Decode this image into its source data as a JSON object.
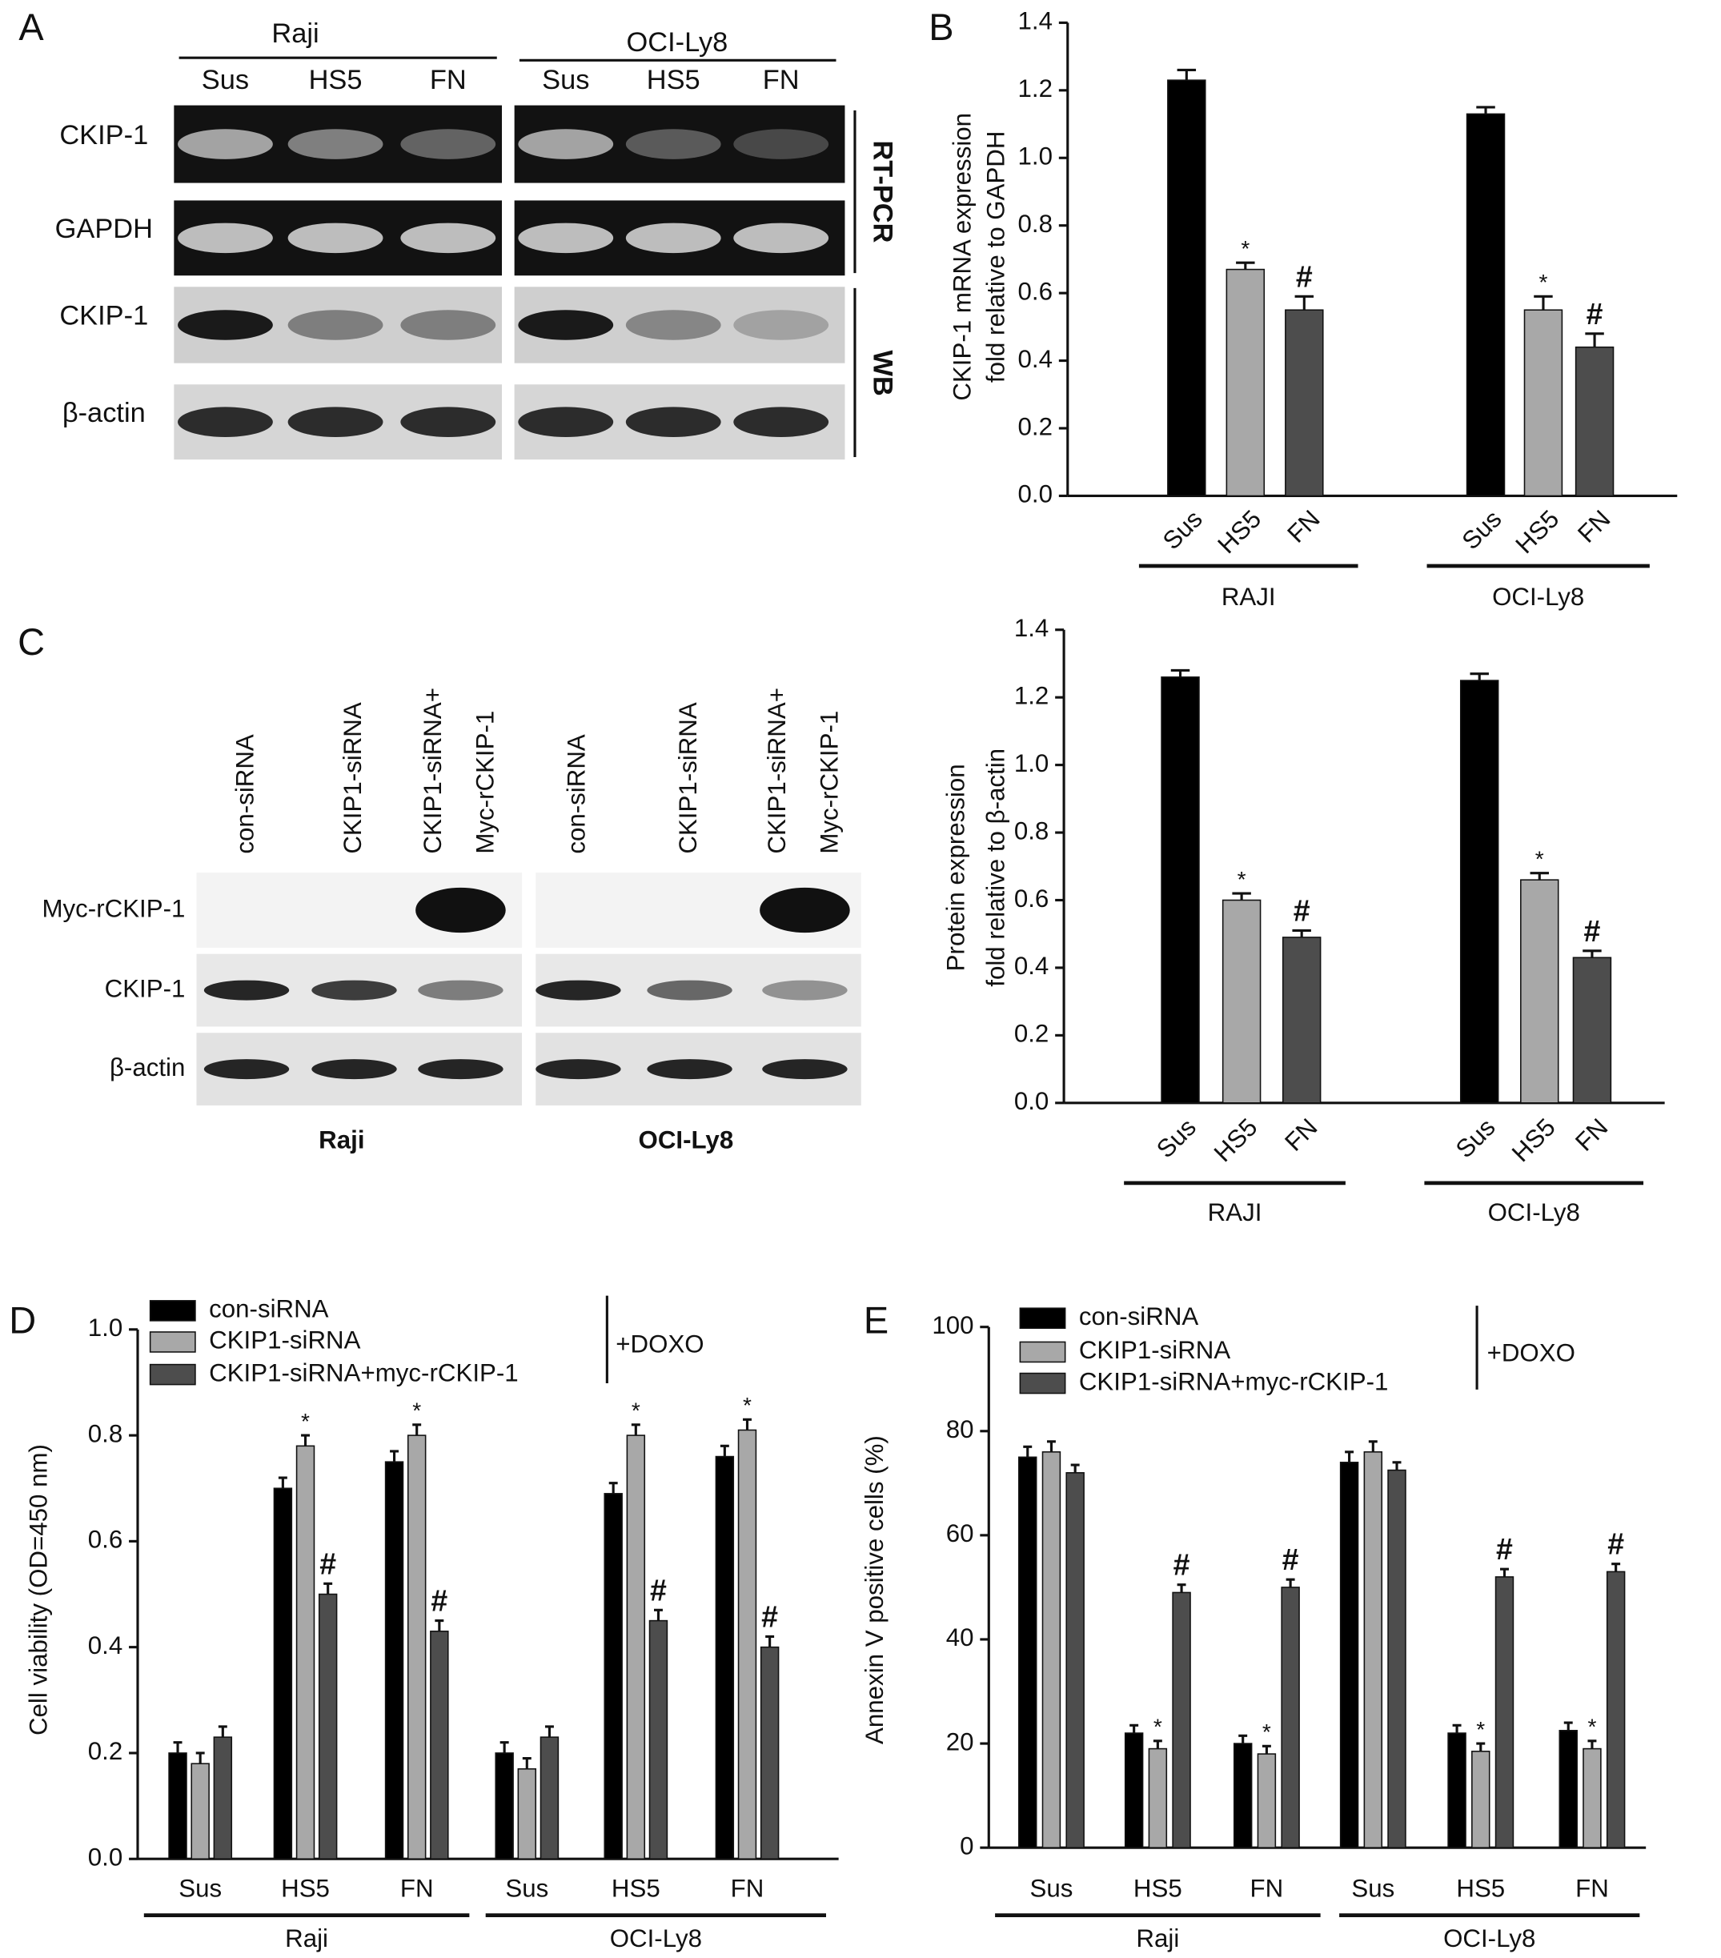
{
  "blots": [
    {
      "panel": "A",
      "cell_lines": [
        "Raji",
        "OCI-Ly8"
      ],
      "lanes": [
        "Sus",
        "HS5",
        "FN",
        "Sus",
        "HS5",
        "FN"
      ],
      "rows": [
        "CKIP-1",
        "GAPDH",
        "CKIP-1",
        "β-actin"
      ],
      "methods": [
        "RT-PCR",
        "WB"
      ]
    },
    {
      "panel": "C",
      "cell_lines": [
        "Raji",
        "OCI-Ly8"
      ],
      "lanes": [
        [
          "con-siRNA"
        ],
        [
          "CKIP1-siRNA"
        ],
        [
          "CKIP1-siRNA+",
          "Myc-rCKIP-1"
        ],
        [
          "con-siRNA"
        ],
        [
          "CKIP1-siRNA"
        ],
        [
          "CKIP1-siRNA+",
          "Myc-rCKIP-1"
        ]
      ],
      "rows": [
        "Myc-rCKIP-1",
        "CKIP-1",
        "β-actin"
      ]
    }
  ],
  "chart_data": [
    {
      "type": "bar",
      "panel": "B",
      "ylabel": [
        "CKIP-1 mRNA expression",
        "fold relative to GAPDH"
      ],
      "groups": [
        {
          "label": "RAJI",
          "categories": [
            "Sus",
            "HS5",
            "FN"
          ]
        },
        {
          "label": "OCI-Ly8",
          "categories": [
            "Sus",
            "HS5",
            "FN"
          ]
        }
      ],
      "ylim": [
        0,
        1.4
      ],
      "yticks": [
        {
          "value": 0,
          "label": "0.0"
        },
        0.2,
        0.4,
        0.6,
        0.8,
        {
          "value": 1,
          "label": "1.0"
        },
        1.2,
        1.4
      ],
      "series": [
        {
          "values": [
            1.23,
            0.67,
            0.55,
            1.13,
            0.55,
            0.44
          ],
          "errors": [
            0.03,
            0.02,
            0.04,
            0.02,
            0.04,
            0.04
          ],
          "markers": [
            null,
            "*",
            "#",
            null,
            "*",
            "#"
          ],
          "colors": [
            "#000000",
            "#a8a8a8",
            "#4d4d4d",
            "#000000",
            "#a8a8a8",
            "#4d4d4d"
          ]
        }
      ]
    },
    {
      "type": "bar",
      "ylabel": [
        "Protein expression",
        "fold relative to  β-actin"
      ],
      "groups": [
        {
          "label": "RAJI",
          "categories": [
            "Sus",
            "HS5",
            "FN"
          ]
        },
        {
          "label": "OCI-Ly8",
          "categories": [
            "Sus",
            "HS5",
            "FN"
          ]
        }
      ],
      "ylim": [
        0,
        1.4
      ],
      "yticks": [
        {
          "value": 0,
          "label": "0.0"
        },
        0.2,
        0.4,
        0.6,
        0.8,
        {
          "value": 1,
          "label": "1.0"
        },
        1.2,
        1.4
      ],
      "series": [
        {
          "values": [
            1.26,
            0.6,
            0.49,
            1.25,
            0.66,
            0.43
          ],
          "errors": [
            0.02,
            0.02,
            0.02,
            0.02,
            0.02,
            0.02
          ],
          "markers": [
            null,
            "*",
            "#",
            null,
            "*",
            "#"
          ],
          "colors": [
            "#000000",
            "#a8a8a8",
            "#4d4d4d",
            "#000000",
            "#a8a8a8",
            "#4d4d4d"
          ]
        }
      ]
    },
    {
      "type": "bar",
      "panel": "D",
      "ylabel": [
        "Cell viability (OD=450 nm)"
      ],
      "bracket_label": "+DOXO",
      "groups": [
        {
          "label": "Raji",
          "categories": [
            "Sus",
            "HS5",
            "FN"
          ]
        },
        {
          "label": "OCI-Ly8",
          "categories": [
            "Sus",
            "HS5",
            "FN"
          ]
        }
      ],
      "ylim": [
        0,
        1.0
      ],
      "yticks": [
        {
          "value": 0,
          "label": "0.0"
        },
        0.2,
        0.4,
        0.6,
        0.8,
        {
          "value": 1,
          "label": "1.0"
        }
      ],
      "series": [
        {
          "name": "con-siRNA",
          "color": "#000000",
          "values": [
            0.2,
            0.7,
            0.75,
            0.2,
            0.69,
            0.76
          ],
          "errors": [
            0.02,
            0.02,
            0.02,
            0.02,
            0.02,
            0.02
          ],
          "markers": [
            null,
            null,
            null,
            null,
            null,
            null
          ]
        },
        {
          "name": "CKIP1-siRNA",
          "color": "#a8a8a8",
          "values": [
            0.18,
            0.78,
            0.8,
            0.17,
            0.8,
            0.81
          ],
          "errors": [
            0.02,
            0.02,
            0.02,
            0.02,
            0.02,
            0.02
          ],
          "markers": [
            null,
            "*",
            "*",
            null,
            "*",
            "*"
          ]
        },
        {
          "name": "CKIP1-siRNA+myc-rCKIP-1",
          "color": "#4d4d4d",
          "values": [
            0.23,
            0.5,
            0.43,
            0.23,
            0.45,
            0.4
          ],
          "errors": [
            0.02,
            0.02,
            0.02,
            0.02,
            0.02,
            0.02
          ],
          "markers": [
            null,
            "#",
            "#",
            null,
            "#",
            "#"
          ]
        }
      ]
    },
    {
      "type": "bar",
      "panel": "E",
      "ylabel": [
        "Annexin V positive cells (%)"
      ],
      "bracket_label": "+DOXO",
      "groups": [
        {
          "label": "Raji",
          "categories": [
            "Sus",
            "HS5",
            "FN"
          ]
        },
        {
          "label": "OCI-Ly8",
          "categories": [
            "Sus",
            "HS5",
            "FN"
          ]
        }
      ],
      "ylim": [
        0,
        100
      ],
      "yticks": [
        0,
        20,
        40,
        60,
        80,
        100
      ],
      "series": [
        {
          "name": "con-siRNA",
          "color": "#000000",
          "values": [
            75,
            22,
            20,
            74,
            22,
            22.5
          ],
          "errors": [
            2,
            1.5,
            1.5,
            2,
            1.5,
            1.5
          ],
          "markers": [
            null,
            null,
            null,
            null,
            null,
            null
          ]
        },
        {
          "name": "CKIP1-siRNA",
          "color": "#a8a8a8",
          "values": [
            76,
            19,
            18,
            76,
            18.5,
            19
          ],
          "errors": [
            2,
            1.5,
            1.5,
            2,
            1.5,
            1.5
          ],
          "markers": [
            null,
            "*",
            "*",
            null,
            "*",
            "*"
          ]
        },
        {
          "name": "CKIP1-siRNA+myc-rCKIP-1",
          "color": "#4d4d4d",
          "values": [
            72,
            49,
            50,
            72.5,
            52,
            53
          ],
          "errors": [
            1.5,
            1.5,
            1.5,
            1.5,
            1.5,
            1.5
          ],
          "markers": [
            null,
            "#",
            "#",
            null,
            "#",
            "#"
          ]
        }
      ]
    }
  ]
}
